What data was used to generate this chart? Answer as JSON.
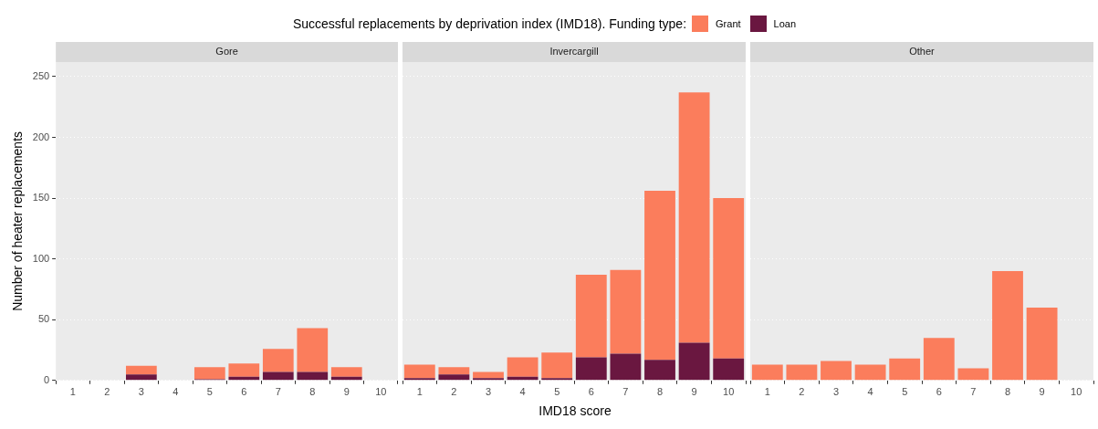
{
  "chart_data": [
    {
      "type": "bar",
      "title": "Gore",
      "legend_title": "Successful replacements by deprivation index (IMD18). Funding type:",
      "legend": "top",
      "ylabel": "Number of heater replacements",
      "categories": [
        "1",
        "2",
        "3",
        "4",
        "5",
        "6",
        "7",
        "8",
        "9",
        "10"
      ],
      "stacked": true,
      "grid": "y",
      "ylim": [
        0,
        262
      ],
      "yticks": [
        0,
        50,
        100,
        150,
        200,
        250
      ],
      "series": [
        {
          "name": "Loan",
          "color": "#6a1740",
          "values": [
            0,
            0,
            5,
            0,
            1,
            3,
            7,
            7,
            3,
            0
          ]
        },
        {
          "name": "Grant",
          "color": "#fb7d5c",
          "values": [
            0,
            0,
            7,
            0,
            10,
            11,
            19,
            36,
            8,
            0
          ]
        }
      ]
    },
    {
      "type": "bar",
      "title": "Invercargill",
      "xlabel": "IMD18 score",
      "categories": [
        "1",
        "2",
        "3",
        "4",
        "5",
        "6",
        "7",
        "8",
        "9",
        "10"
      ],
      "stacked": true,
      "grid": "y",
      "tick_labels": "x",
      "ylim": [
        0,
        262
      ],
      "yticks": [
        0,
        50,
        100,
        150,
        200,
        250
      ],
      "series": [
        {
          "color": "#6a1740",
          "values": [
            2,
            5,
            2,
            3,
            2,
            19,
            22,
            17,
            31,
            18
          ]
        },
        {
          "color": "#fb7d5c",
          "values": [
            11,
            6,
            5,
            16,
            21,
            68,
            69,
            139,
            206,
            132
          ]
        }
      ]
    },
    {
      "type": "bar",
      "title": "Other",
      "categories": [
        "1",
        "2",
        "3",
        "4",
        "5",
        "6",
        "7",
        "8",
        "9",
        "10"
      ],
      "stacked": true,
      "grid": "y",
      "tick_labels": "x",
      "ylim": [
        0,
        262
      ],
      "yticks": [
        0,
        50,
        100,
        150,
        200,
        250
      ],
      "series": [
        {
          "color": "#6a1740",
          "values": [
            0,
            0,
            0,
            0,
            0,
            0,
            0,
            0,
            0,
            0
          ]
        },
        {
          "color": "#fb7d5c",
          "values": [
            13,
            13,
            16,
            13,
            18,
            35,
            10,
            90,
            60,
            0
          ]
        }
      ]
    }
  ]
}
